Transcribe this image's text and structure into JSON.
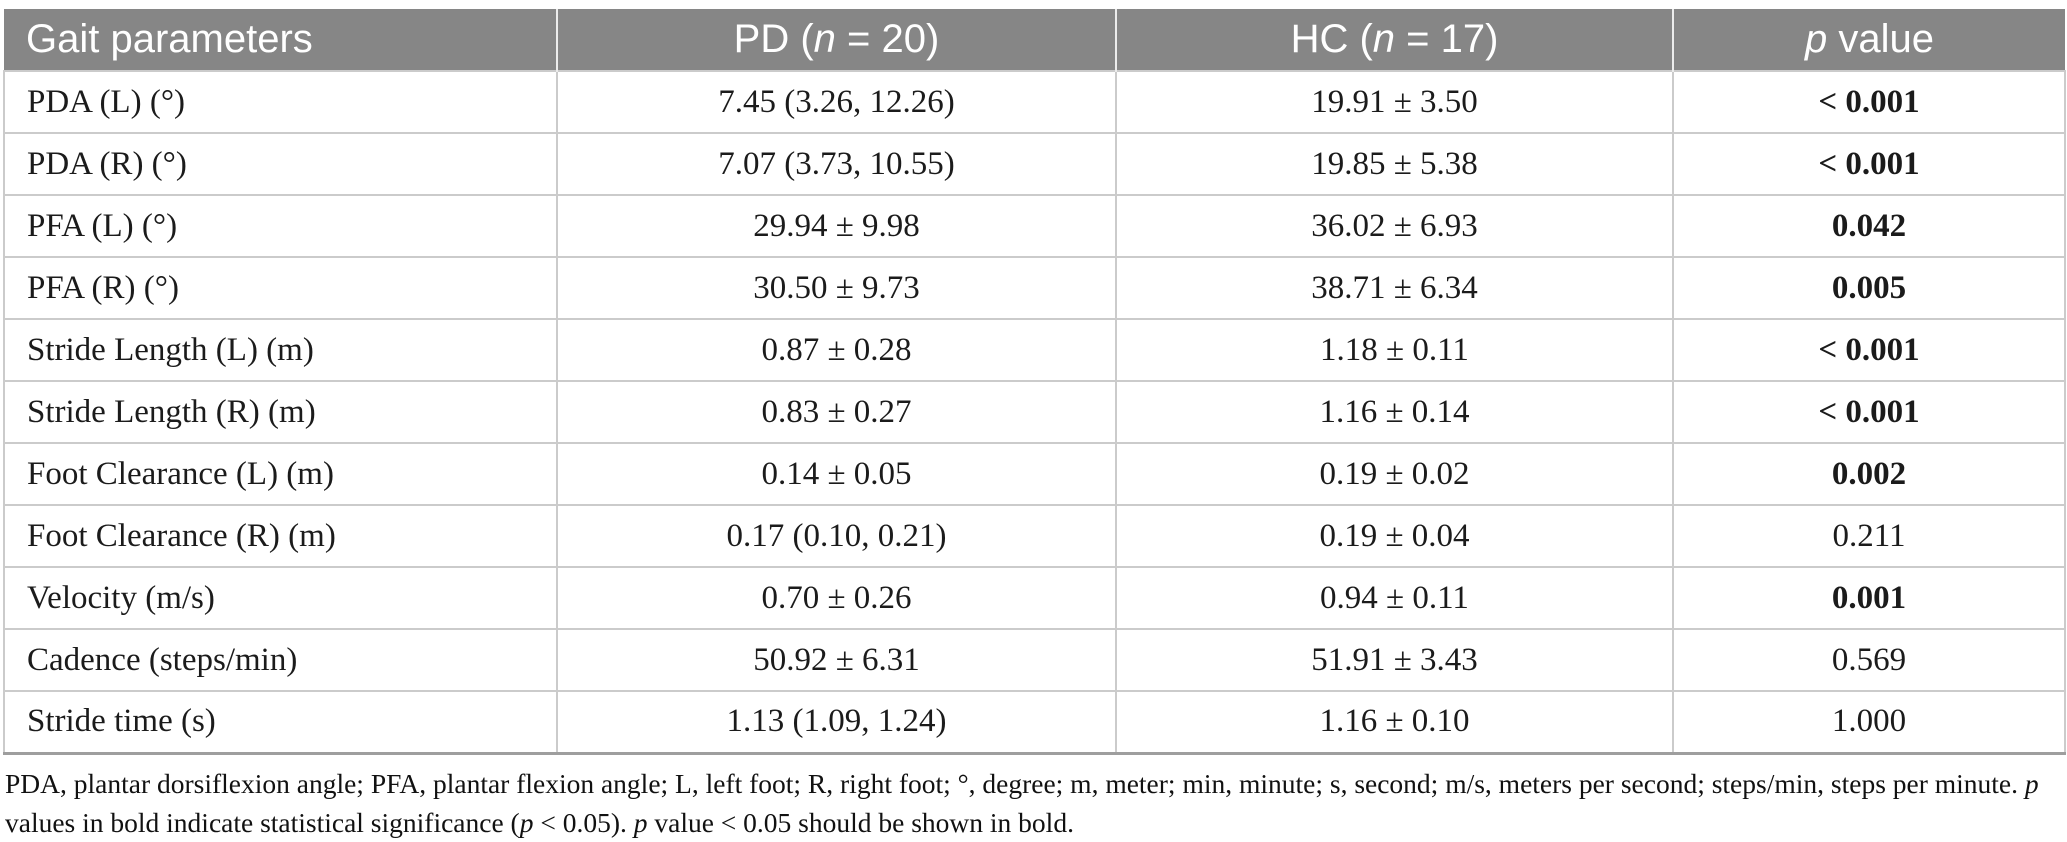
{
  "table": {
    "columns": [
      {
        "key": "param",
        "align": "left",
        "segments": [
          {
            "t": "Gait parameters"
          }
        ]
      },
      {
        "key": "pd",
        "align": "center",
        "segments": [
          {
            "t": "PD ("
          },
          {
            "t": "n",
            "i": true
          },
          {
            "t": " = 20)"
          }
        ]
      },
      {
        "key": "hc",
        "align": "center",
        "segments": [
          {
            "t": "HC ("
          },
          {
            "t": "n",
            "i": true
          },
          {
            "t": " = 17)"
          }
        ]
      },
      {
        "key": "p",
        "align": "center",
        "segments": [
          {
            "t": "p",
            "i": true
          },
          {
            "t": " value"
          }
        ]
      }
    ],
    "rows": [
      {
        "param": "PDA (L) (°)",
        "pd": "7.45 (3.26, 12.26)",
        "hc": "19.91 ± 3.50",
        "p": "< 0.001",
        "p_bold": true
      },
      {
        "param": "PDA (R) (°)",
        "pd": "7.07 (3.73, 10.55)",
        "hc": "19.85 ± 5.38",
        "p": "< 0.001",
        "p_bold": true
      },
      {
        "param": "PFA (L) (°)",
        "pd": "29.94 ± 9.98",
        "hc": "36.02 ± 6.93",
        "p": "0.042",
        "p_bold": true
      },
      {
        "param": "PFA (R) (°)",
        "pd": "30.50 ± 9.73",
        "hc": "38.71 ± 6.34",
        "p": "0.005",
        "p_bold": true
      },
      {
        "param": "Stride Length (L) (m)",
        "pd": "0.87 ± 0.28",
        "hc": "1.18 ± 0.11",
        "p": "< 0.001",
        "p_bold": true
      },
      {
        "param": "Stride Length (R) (m)",
        "pd": "0.83 ± 0.27",
        "hc": "1.16 ± 0.14",
        "p": "< 0.001",
        "p_bold": true
      },
      {
        "param": "Foot Clearance (L) (m)",
        "pd": "0.14 ± 0.05",
        "hc": "0.19 ± 0.02",
        "p": "0.002",
        "p_bold": true
      },
      {
        "param": "Foot Clearance (R) (m)",
        "pd": "0.17 (0.10, 0.21)",
        "hc": "0.19 ± 0.04",
        "p": "0.211",
        "p_bold": false
      },
      {
        "param": "Velocity (m/s)",
        "pd": "0.70 ± 0.26",
        "hc": "0.94 ± 0.11",
        "p": "0.001",
        "p_bold": true
      },
      {
        "param": "Cadence (steps/min)",
        "pd": "50.92 ± 6.31",
        "hc": "51.91 ± 3.43",
        "p": "0.569",
        "p_bold": false
      },
      {
        "param": "Stride time (s)",
        "pd": "1.13 (1.09, 1.24)",
        "hc": "1.16 ± 0.10",
        "p": "1.000",
        "p_bold": false
      }
    ]
  },
  "footnote": {
    "segments": [
      {
        "t": "PDA, plantar dorsiflexion angle; PFA, plantar flexion angle; L, left foot; R, right foot; °, degree; m, meter; min, minute; s, second; m/s, meters per second; steps/min, steps per minute. "
      },
      {
        "t": "p",
        "i": true
      },
      {
        "t": " values in bold indicate statistical significance ("
      },
      {
        "t": "p",
        "i": true
      },
      {
        "t": " < 0.05). "
      },
      {
        "t": "p",
        "i": true
      },
      {
        "t": " value < 0.05 should be shown in bold."
      }
    ]
  },
  "colors": {
    "header_bg": "#868686",
    "header_text": "#ffffff",
    "body_text": "#1b1b1b",
    "grid_line": "#cbcbcb",
    "bottom_border": "#9e9e9e"
  }
}
